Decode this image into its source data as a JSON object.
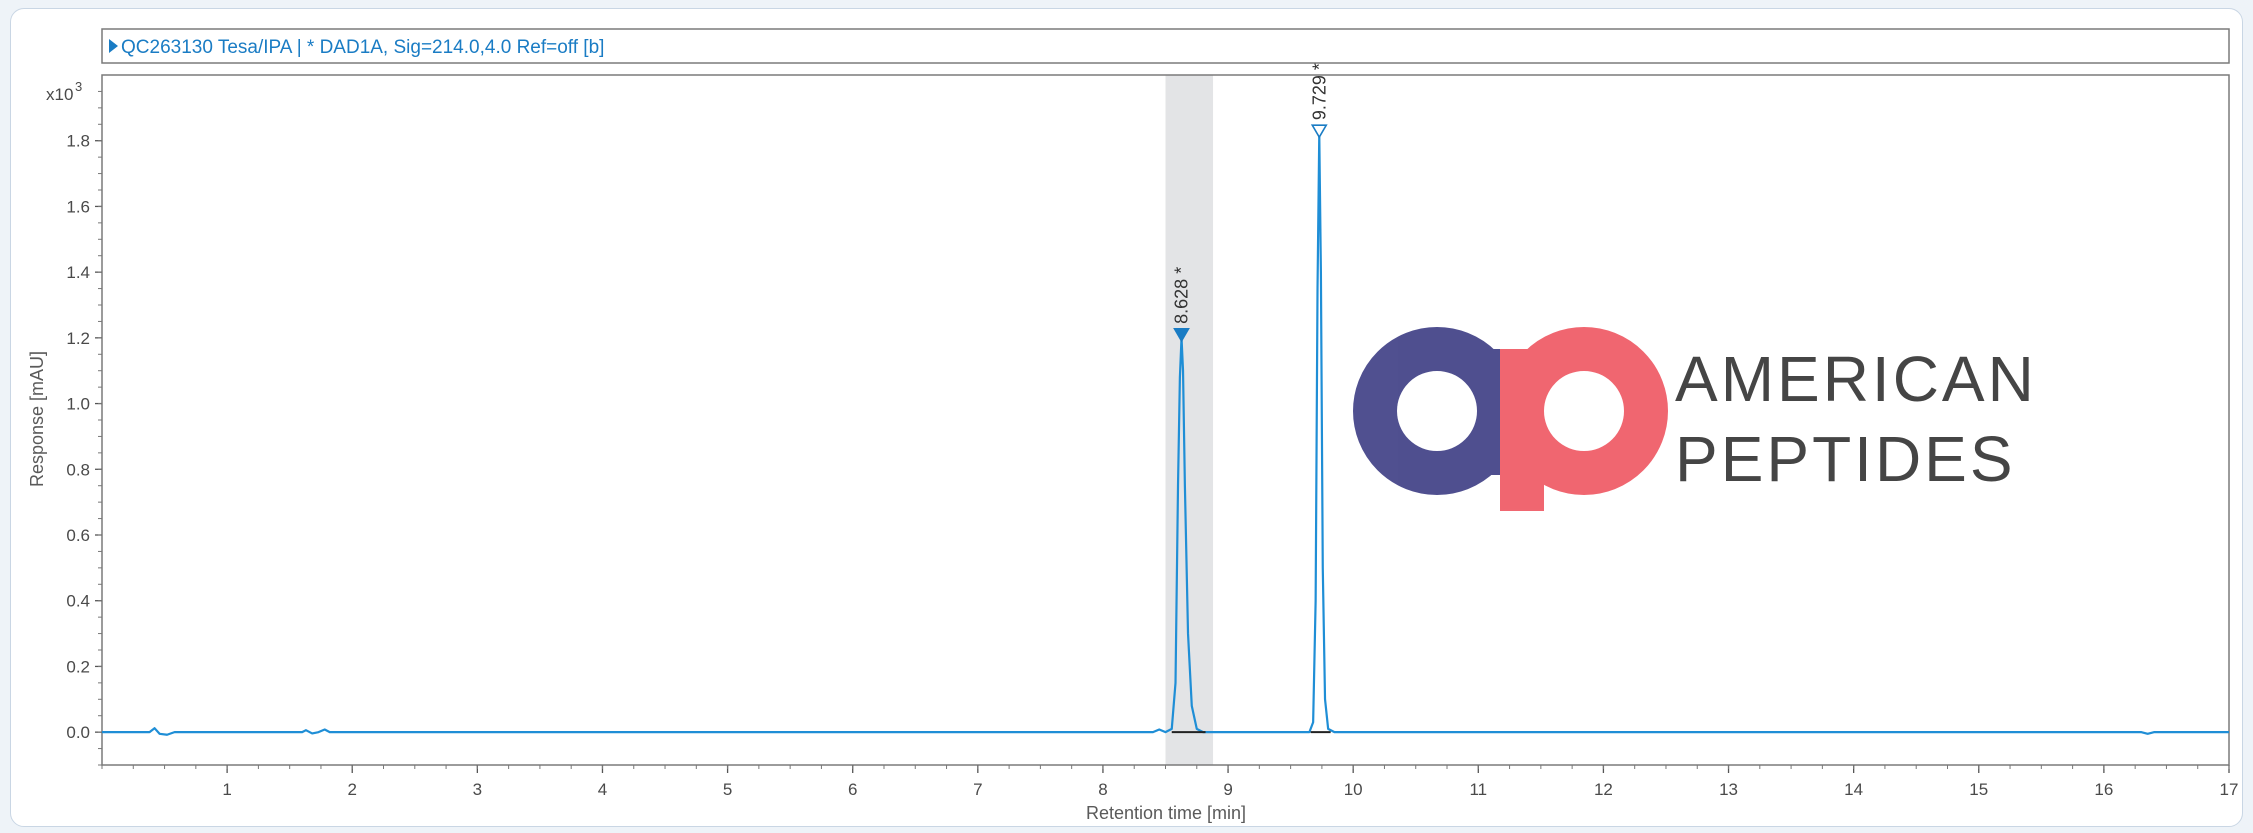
{
  "chart_data": {
    "type": "line",
    "header": "QC263130 Tesa/IPA | * DAD1A, Sig=214.0,4.0  Ref=off [b]",
    "scale_label": "x10",
    "scale_exponent": "3",
    "xlabel": "Retention time [min]",
    "ylabel": "Response [mAU]",
    "xlim": [
      0,
      17
    ],
    "ylim": [
      -0.1,
      2.0
    ],
    "x_ticks": [
      1,
      2,
      3,
      4,
      5,
      6,
      7,
      8,
      9,
      10,
      11,
      12,
      13,
      14,
      15,
      16,
      17
    ],
    "x_tick_labels": [
      "1",
      "2",
      "3",
      "4",
      "5",
      "6",
      "7",
      "8",
      "9",
      "10",
      "11",
      "12",
      "13",
      "14",
      "15",
      "16",
      "17"
    ],
    "y_ticks": [
      0.0,
      0.2,
      0.4,
      0.6,
      0.8,
      1.0,
      1.2,
      1.4,
      1.6,
      1.8
    ],
    "y_tick_labels": [
      "0.0",
      "0.2",
      "0.4",
      "0.6",
      "0.8",
      "1.0",
      "1.2",
      "1.4",
      "1.6",
      "1.8"
    ],
    "shaded_region": [
      8.5,
      8.88
    ],
    "series": [
      {
        "color": "#1f8ed6",
        "points": [
          [
            0.0,
            0.0
          ],
          [
            0.38,
            0.0
          ],
          [
            0.42,
            0.012
          ],
          [
            0.46,
            -0.005
          ],
          [
            0.52,
            -0.008
          ],
          [
            0.58,
            0.0
          ],
          [
            1.6,
            0.0
          ],
          [
            1.63,
            0.006
          ],
          [
            1.68,
            -0.004
          ],
          [
            1.73,
            0.0
          ],
          [
            1.78,
            0.008
          ],
          [
            1.82,
            0.0
          ],
          [
            8.4,
            0.0
          ],
          [
            8.45,
            0.008
          ],
          [
            8.5,
            0.0
          ],
          [
            8.55,
            0.01
          ],
          [
            8.58,
            0.15
          ],
          [
            8.6,
            0.75
          ],
          [
            8.615,
            1.08
          ],
          [
            8.628,
            1.2
          ],
          [
            8.64,
            1.1
          ],
          [
            8.655,
            0.75
          ],
          [
            8.68,
            0.3
          ],
          [
            8.71,
            0.08
          ],
          [
            8.75,
            0.01
          ],
          [
            8.8,
            0.0
          ],
          [
            9.65,
            0.0
          ],
          [
            9.68,
            0.03
          ],
          [
            9.7,
            0.4
          ],
          [
            9.715,
            1.35
          ],
          [
            9.729,
            1.82
          ],
          [
            9.742,
            1.4
          ],
          [
            9.757,
            0.5
          ],
          [
            9.775,
            0.1
          ],
          [
            9.8,
            0.01
          ],
          [
            9.85,
            0.0
          ],
          [
            16.3,
            0.0
          ],
          [
            16.35,
            -0.005
          ],
          [
            16.4,
            0.0
          ],
          [
            17.0,
            0.0
          ]
        ]
      }
    ],
    "peaks": [
      {
        "x": 8.628,
        "y": 1.2,
        "label": "8.628 *",
        "marker": "filled-triangle",
        "color": "#1a7cc4"
      },
      {
        "x": 9.729,
        "y": 1.82,
        "label": "9.729 *",
        "marker": "open-triangle",
        "color": "#1a7cc4"
      }
    ],
    "grid": false
  },
  "watermark": {
    "logo_letters": "ap",
    "line1": "AMERICAN",
    "line2": "PEPTIDES",
    "colors": {
      "a": "#4a4a8c",
      "p": "#f0626c",
      "text": "#3f3f3f"
    }
  }
}
